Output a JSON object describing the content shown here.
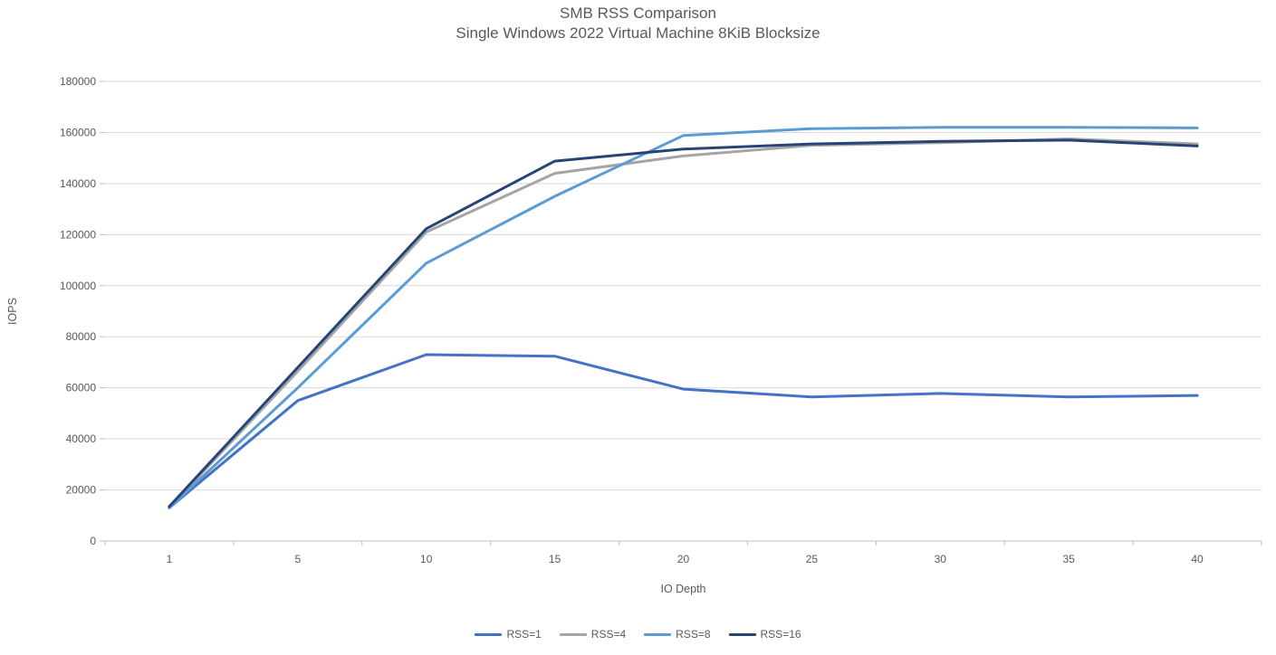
{
  "chart_data": {
    "type": "line",
    "title": "SMB RSS Comparison",
    "subtitle": "Single Windows 2022 Virtual Machine 8KiB Blocksize",
    "xlabel": "IO Depth",
    "ylabel": "IOPS",
    "categories": [
      "1",
      "5",
      "10",
      "15",
      "20",
      "25",
      "30",
      "35",
      "40"
    ],
    "series": [
      {
        "name": "RSS=1",
        "color": "#4472C4",
        "values": [
          13000,
          55000,
          73000,
          72400,
          59500,
          56400,
          57800,
          56400,
          57000
        ]
      },
      {
        "name": "RSS=4",
        "color": "#A5A5A5",
        "values": [
          13000,
          66500,
          121000,
          144000,
          150800,
          155000,
          156000,
          157500,
          155500
        ]
      },
      {
        "name": "RSS=8",
        "color": "#5B9BD5",
        "values": [
          13000,
          60000,
          108800,
          135000,
          158800,
          161500,
          162000,
          162000,
          161800
        ]
      },
      {
        "name": "RSS=16",
        "color": "#264478",
        "values": [
          13500,
          68000,
          122300,
          148800,
          153500,
          155500,
          156500,
          157000,
          154700
        ]
      }
    ],
    "ylim": [
      0,
      180000
    ],
    "ytick_step": 20000,
    "grid": "horizontal",
    "legend_position": "bottom",
    "gridline_color": "#D9D9D9",
    "axis_line_color": "#BFBFBF",
    "tick_label_color": "#595959"
  }
}
